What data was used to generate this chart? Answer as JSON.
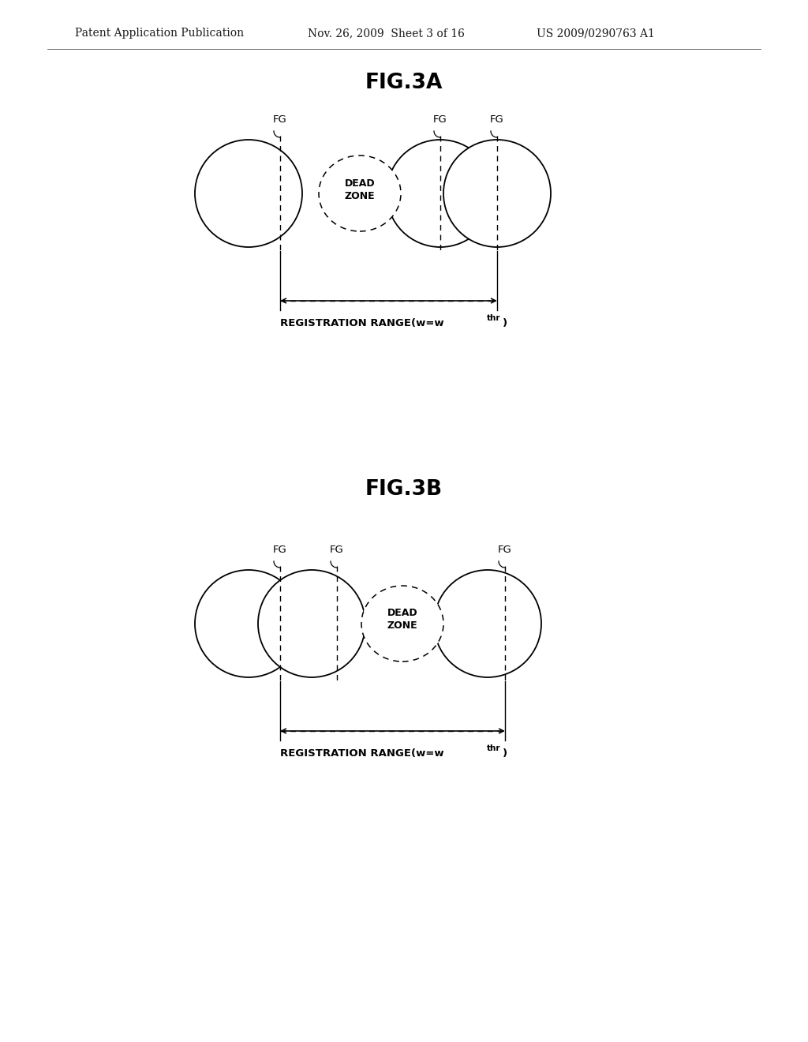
{
  "bg_color": "#ffffff",
  "header_left": "Patent Application Publication",
  "header_mid": "Nov. 26, 2009  Sheet 3 of 16",
  "header_right": "US 2009/0290763 A1",
  "fig3a_title": "FIG.3A",
  "fig3b_title": "FIG.3B",
  "circle_lw": 1.3,
  "dz_lw": 1.1,
  "line_color": "#000000"
}
